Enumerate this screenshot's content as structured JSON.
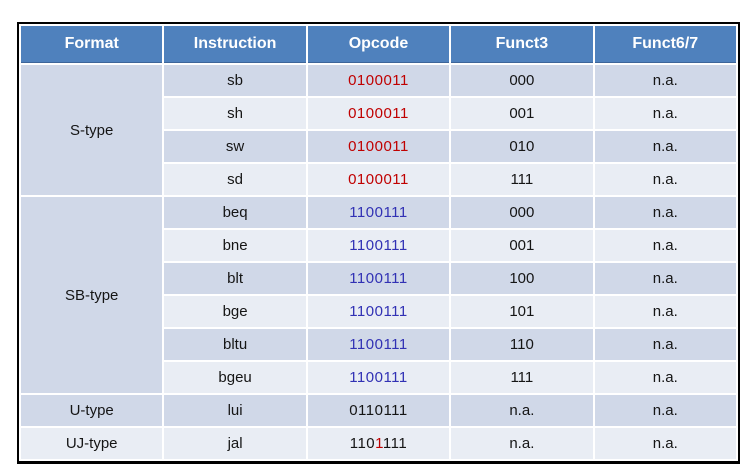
{
  "colors": {
    "header_bg": "#4f81bd",
    "band_dark": "#d0d8e8",
    "band_light": "#e9edf4",
    "red": "#c00000",
    "blue": "#3131b4",
    "black": "#151515"
  },
  "table": {
    "headers": [
      "Format",
      "Instruction",
      "Opcode",
      "Funct3",
      "Funct6/7"
    ],
    "groups": [
      {
        "format": "S-type",
        "rows": [
          {
            "instruction": "sb",
            "opcode": [
              {
                "t": "0100011",
                "c": "red"
              }
            ],
            "funct3": "000",
            "funct67": "n.a."
          },
          {
            "instruction": "sh",
            "opcode": [
              {
                "t": "0100011",
                "c": "red"
              }
            ],
            "funct3": "001",
            "funct67": "n.a."
          },
          {
            "instruction": "sw",
            "opcode": [
              {
                "t": "0100011",
                "c": "red"
              }
            ],
            "funct3": "010",
            "funct67": "n.a."
          },
          {
            "instruction": "sd",
            "opcode": [
              {
                "t": "0100011",
                "c": "red"
              }
            ],
            "funct3": "111",
            "funct67": "n.a."
          }
        ]
      },
      {
        "format": "SB-type",
        "rows": [
          {
            "instruction": "beq",
            "opcode": [
              {
                "t": "1100111",
                "c": "blue"
              }
            ],
            "funct3": "000",
            "funct67": "n.a."
          },
          {
            "instruction": "bne",
            "opcode": [
              {
                "t": "1100111",
                "c": "blue"
              }
            ],
            "funct3": "001",
            "funct67": "n.a."
          },
          {
            "instruction": "blt",
            "opcode": [
              {
                "t": "1100111",
                "c": "blue"
              }
            ],
            "funct3": "100",
            "funct67": "n.a."
          },
          {
            "instruction": "bge",
            "opcode": [
              {
                "t": "1100111",
                "c": "blue"
              }
            ],
            "funct3": "101",
            "funct67": "n.a."
          },
          {
            "instruction": "bltu",
            "opcode": [
              {
                "t": "1100111",
                "c": "blue"
              }
            ],
            "funct3": "110",
            "funct67": "n.a."
          },
          {
            "instruction": "bgeu",
            "opcode": [
              {
                "t": "1100111",
                "c": "blue"
              }
            ],
            "funct3": "111",
            "funct67": "n.a."
          }
        ]
      },
      {
        "format": "U-type",
        "rows": [
          {
            "instruction": "lui",
            "opcode": [
              {
                "t": "0110111",
                "c": "black"
              }
            ],
            "funct3": "n.a.",
            "funct67": "n.a."
          }
        ]
      },
      {
        "format": "UJ-type",
        "rows": [
          {
            "instruction": "jal",
            "opcode": [
              {
                "t": "110",
                "c": "black"
              },
              {
                "t": "1",
                "c": "red"
              },
              {
                "t": "111",
                "c": "black"
              }
            ],
            "funct3": "n.a.",
            "funct67": "n.a."
          }
        ]
      }
    ]
  }
}
